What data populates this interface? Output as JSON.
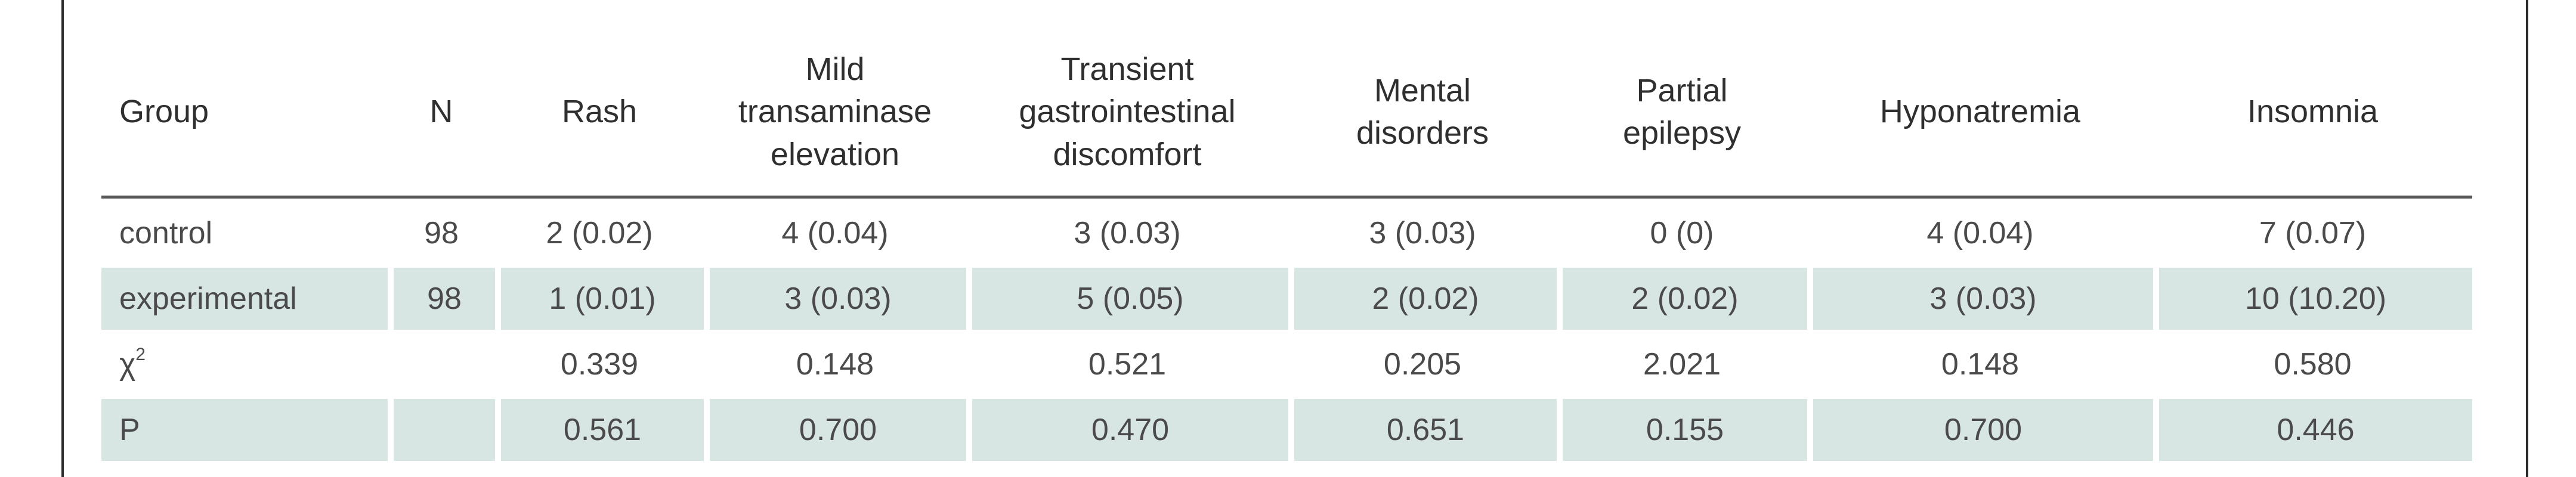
{
  "table": {
    "headers": [
      "Group",
      "N",
      "Rash",
      [
        "Mild",
        "transaminase",
        "elevation"
      ],
      [
        "Transient",
        "gastrointestinal",
        "discomfort"
      ],
      [
        "Mental",
        "disorders"
      ],
      [
        "Partial",
        "epilepsy"
      ],
      "Hyponatremia",
      "Insomnia"
    ],
    "rows": [
      {
        "group": "control",
        "n": "98",
        "rash": "2 (0.02)",
        "mild": "4 (0.04)",
        "transient": "3 (0.03)",
        "mental": "3 (0.03)",
        "partial": "0 (0)",
        "hypo": "4 (0.04)",
        "insomnia": "7 (0.07)"
      },
      {
        "group": "experimental",
        "n": "98",
        "rash": "1 (0.01)",
        "mild": "3 (0.03)",
        "transient": "5 (0.05)",
        "mental": "2 (0.02)",
        "partial": "2 (0.02)",
        "hypo": "3 (0.03)",
        "insomnia": "10 (10.20)"
      },
      {
        "group_base": "χ",
        "group_sup": "2",
        "n": "",
        "rash": "0.339",
        "mild": "0.148",
        "transient": "0.521",
        "mental": "0.205",
        "partial": "2.021",
        "hypo": "0.148",
        "insomnia": "0.580"
      },
      {
        "group": "P",
        "n": "",
        "rash": "0.561",
        "mild": "0.700",
        "transient": "0.470",
        "mental": "0.651",
        "partial": "0.155",
        "hypo": "0.700",
        "insomnia": "0.446"
      }
    ]
  },
  "colors": {
    "row_shade": "#d8e6e3",
    "header_rule": "#555555",
    "text": "#4a4a4a"
  }
}
